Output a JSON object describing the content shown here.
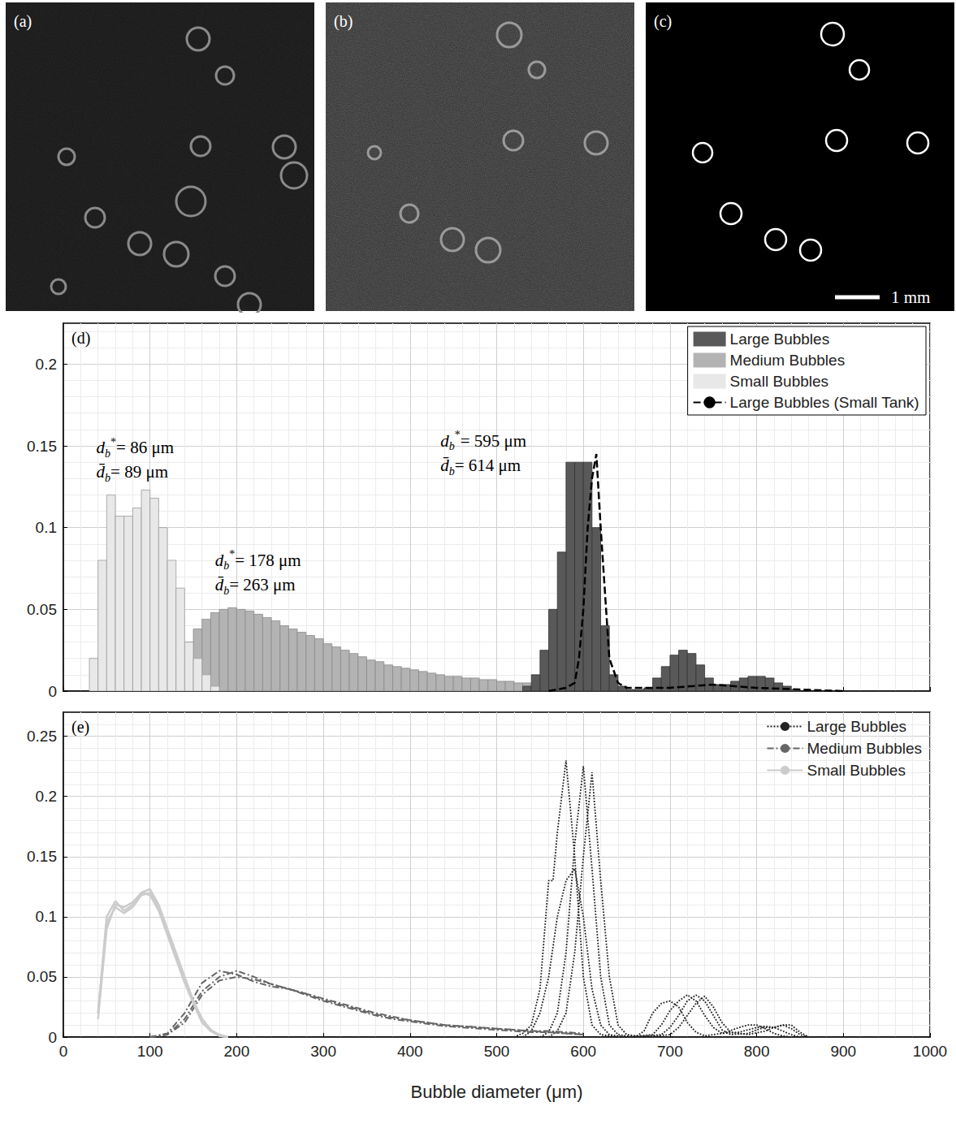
{
  "images": {
    "panels": [
      {
        "label": "(a)"
      },
      {
        "label": "(b)"
      },
      {
        "label": "(c)",
        "scale_bar": "1 mm"
      }
    ]
  },
  "chart_data": [
    {
      "type": "histogram",
      "title": "(d)",
      "xlim": [
        0,
        1000
      ],
      "xticks": [
        0,
        100,
        200,
        300,
        400,
        500,
        600,
        700,
        800,
        900,
        1000
      ],
      "ylim": [
        0,
        0.225
      ],
      "yticks": [
        0,
        0.05,
        0.1,
        0.15,
        0.2
      ],
      "grid": true,
      "legend": "upper right",
      "tick_labels": "y",
      "series": [
        {
          "name": "Large Bubbles",
          "color": "#595959",
          "type": "bar",
          "bins": [
            530,
            540,
            550,
            560,
            570,
            580,
            590,
            600,
            610,
            620,
            630,
            640,
            650,
            660,
            670,
            680,
            690,
            700,
            710,
            720,
            730,
            740,
            750,
            760,
            770,
            780,
            790,
            800,
            810,
            820,
            830,
            840,
            850
          ],
          "values": [
            0.003,
            0.01,
            0.025,
            0.05,
            0.085,
            0.14,
            0.14,
            0.14,
            0.1,
            0.04,
            0.01,
            0.003,
            0.001,
            0.001,
            0.002,
            0.008,
            0.015,
            0.022,
            0.025,
            0.023,
            0.016,
            0.008,
            0.004,
            0.004,
            0.006,
            0.008,
            0.009,
            0.009,
            0.008,
            0.005,
            0.003,
            0.001
          ]
        },
        {
          "name": "Medium Bubbles",
          "color": "#b3b3b3",
          "type": "bar",
          "bins": [
            100,
            110,
            120,
            130,
            140,
            150,
            160,
            170,
            180,
            190,
            200,
            210,
            220,
            230,
            240,
            250,
            260,
            270,
            280,
            290,
            300,
            310,
            320,
            330,
            340,
            350,
            360,
            370,
            380,
            390,
            400,
            410,
            420,
            430,
            440,
            450,
            460,
            470,
            480,
            490,
            500,
            510,
            520,
            530,
            540,
            550,
            560,
            570,
            580,
            590
          ],
          "values": [
            0.001,
            0.003,
            0.01,
            0.02,
            0.03,
            0.038,
            0.044,
            0.048,
            0.05,
            0.051,
            0.05,
            0.049,
            0.047,
            0.045,
            0.043,
            0.04,
            0.038,
            0.036,
            0.034,
            0.032,
            0.029,
            0.027,
            0.025,
            0.023,
            0.021,
            0.019,
            0.018,
            0.016,
            0.015,
            0.014,
            0.013,
            0.012,
            0.011,
            0.01,
            0.009,
            0.009,
            0.008,
            0.008,
            0.007,
            0.007,
            0.006,
            0.006,
            0.005,
            0.005,
            0.004,
            0.004,
            0.003,
            0.003,
            0.002
          ]
        },
        {
          "name": "Small Bubbles",
          "color": "#e8e8e8",
          "type": "bar",
          "bins": [
            30,
            40,
            50,
            60,
            70,
            80,
            90,
            100,
            110,
            120,
            130,
            140,
            150,
            160,
            170,
            180
          ],
          "values": [
            0.02,
            0.08,
            0.12,
            0.107,
            0.107,
            0.112,
            0.123,
            0.118,
            0.1,
            0.08,
            0.063,
            0.03,
            0.02,
            0.01,
            0.003
          ]
        },
        {
          "name": "Large Bubbles (Small Tank)",
          "color": "#000000",
          "type": "line",
          "line_style": "dashed",
          "x": [
            560,
            580,
            590,
            595,
            600,
            605,
            610,
            615,
            620,
            625,
            630,
            640,
            650,
            700,
            750,
            800,
            850,
            900
          ],
          "values": [
            0,
            0.002,
            0.005,
            0.02,
            0.05,
            0.1,
            0.13,
            0.145,
            0.1,
            0.06,
            0.02,
            0.005,
            0.002,
            0.002,
            0.004,
            0.002,
            0.001,
            0
          ]
        }
      ],
      "annotations": [
        {
          "symbol": "d",
          "sup": "*",
          "sub": "b",
          "text": "= 86 μm"
        },
        {
          "symbol": "d̄",
          "sub": "b",
          "text": "= 89 μm"
        },
        {
          "symbol": "d",
          "sup": "*",
          "sub": "b",
          "text": "= 178 μm"
        },
        {
          "symbol": "d̄",
          "sub": "b",
          "text": "= 263 μm"
        },
        {
          "symbol": "d",
          "sup": "*",
          "sub": "b",
          "text": "= 595 μm"
        },
        {
          "symbol": "d̄",
          "sub": "b",
          "text": "= 614 μm"
        }
      ]
    },
    {
      "type": "line",
      "title": "(e)",
      "xlabel": "Bubble diameter (μm)",
      "xlim": [
        0,
        1000
      ],
      "xticks": [
        0,
        100,
        200,
        300,
        400,
        500,
        600,
        700,
        800,
        900,
        1000
      ],
      "ylim": [
        0,
        0.27
      ],
      "yticks": [
        0,
        0.05,
        0.1,
        0.15,
        0.2,
        0.25
      ],
      "grid": true,
      "legend": "upper right",
      "series": [
        {
          "name": "Large Bubbles",
          "color": "#222222",
          "line_style": "dotted",
          "x": [
            520,
            530,
            540,
            550,
            560,
            565,
            570,
            580,
            590,
            600,
            610,
            620,
            640,
            660,
            670,
            680,
            690,
            700,
            710,
            720,
            730,
            740,
            760,
            780,
            790,
            800,
            810,
            820,
            830,
            840
          ],
          "values": [
            0,
            0.003,
            0.01,
            0.04,
            0.13,
            0.13,
            0.17,
            0.23,
            0.15,
            0.05,
            0.01,
            0.002,
            0,
            0,
            0.005,
            0.02,
            0.028,
            0.03,
            0.025,
            0.012,
            0.004,
            0.001,
            0.003,
            0.008,
            0.01,
            0.01,
            0.007,
            0.003,
            0.001,
            0
          ]
        },
        {
          "name": "Large Bubbles",
          "color": "#222222",
          "line_style": "dotted",
          "x": [
            530,
            540,
            550,
            560,
            570,
            580,
            590,
            600,
            610,
            620,
            630,
            650,
            680,
            690,
            700,
            710,
            720,
            730,
            740,
            750,
            760,
            780,
            800,
            810,
            820,
            830,
            840,
            850
          ],
          "values": [
            0,
            0.005,
            0.02,
            0.05,
            0.1,
            0.13,
            0.14,
            0.1,
            0.04,
            0.01,
            0.002,
            0,
            0.002,
            0.01,
            0.022,
            0.03,
            0.035,
            0.03,
            0.018,
            0.008,
            0.003,
            0.004,
            0.008,
            0.009,
            0.008,
            0.005,
            0.002,
            0
          ]
        },
        {
          "name": "Large Bubbles",
          "color": "#222222",
          "line_style": "dotted",
          "x": [
            550,
            560,
            570,
            580,
            590,
            600,
            610,
            620,
            630,
            640,
            660,
            690,
            700,
            710,
            720,
            730,
            740,
            750,
            760,
            770,
            790,
            800,
            810,
            820,
            830,
            840,
            850,
            860
          ],
          "values": [
            0,
            0.004,
            0.02,
            0.07,
            0.16,
            0.225,
            0.14,
            0.05,
            0.01,
            0.002,
            0,
            0.002,
            0.008,
            0.018,
            0.03,
            0.035,
            0.03,
            0.018,
            0.006,
            0.002,
            0.003,
            0.006,
            0.008,
            0.008,
            0.01,
            0.007,
            0.002,
            0
          ]
        },
        {
          "name": "Large Bubbles",
          "color": "#222222",
          "line_style": "dotted",
          "x": [
            560,
            570,
            580,
            590,
            600,
            610,
            620,
            630,
            640,
            650,
            670,
            700,
            710,
            720,
            730,
            740,
            750,
            760,
            770,
            790,
            810,
            820,
            830,
            840,
            850,
            860
          ],
          "values": [
            0,
            0.005,
            0.02,
            0.07,
            0.15,
            0.22,
            0.13,
            0.05,
            0.01,
            0.002,
            0,
            0.002,
            0.008,
            0.018,
            0.028,
            0.034,
            0.025,
            0.012,
            0.004,
            0.002,
            0.005,
            0.008,
            0.01,
            0.01,
            0.004,
            0
          ]
        },
        {
          "name": "Medium Bubbles",
          "color": "#666666",
          "line_style": "dashdot",
          "x": [
            100,
            120,
            140,
            160,
            180,
            200,
            220,
            240,
            260,
            280,
            300,
            320,
            340,
            360,
            380,
            400,
            420,
            440,
            460,
            480,
            500,
            520,
            540,
            560,
            580,
            600
          ],
          "values": [
            0,
            0.003,
            0.02,
            0.045,
            0.055,
            0.052,
            0.046,
            0.042,
            0.04,
            0.035,
            0.03,
            0.026,
            0.022,
            0.018,
            0.015,
            0.013,
            0.011,
            0.009,
            0.008,
            0.007,
            0.006,
            0.005,
            0.004,
            0.004,
            0.003,
            0.002
          ]
        },
        {
          "name": "Medium Bubbles",
          "color": "#666666",
          "line_style": "dashdot",
          "x": [
            100,
            120,
            140,
            160,
            180,
            200,
            220,
            240,
            260,
            280,
            300,
            320,
            340,
            360,
            380,
            400,
            420,
            440,
            460,
            480,
            500,
            520,
            540,
            560,
            580,
            600
          ],
          "values": [
            0,
            0.002,
            0.015,
            0.038,
            0.05,
            0.055,
            0.05,
            0.044,
            0.04,
            0.036,
            0.031,
            0.027,
            0.023,
            0.019,
            0.016,
            0.014,
            0.012,
            0.01,
            0.009,
            0.008,
            0.007,
            0.006,
            0.005,
            0.005,
            0.004,
            0.003
          ]
        },
        {
          "name": "Medium Bubbles",
          "color": "#666666",
          "line_style": "dashdot",
          "x": [
            100,
            120,
            140,
            160,
            180,
            200,
            220,
            240,
            260,
            280,
            300,
            320,
            340,
            360,
            380,
            400,
            420,
            440,
            460,
            480,
            500,
            520,
            540,
            560,
            580,
            600
          ],
          "values": [
            0,
            0.002,
            0.012,
            0.035,
            0.047,
            0.05,
            0.048,
            0.044,
            0.04,
            0.036,
            0.032,
            0.028,
            0.024,
            0.02,
            0.017,
            0.014,
            0.012,
            0.01,
            0.009,
            0.008,
            0.007,
            0.006,
            0.005,
            0.004,
            0.003,
            0.002
          ]
        },
        {
          "name": "Small Bubbles",
          "color": "#cccccc",
          "line_style": "solid",
          "x": [
            40,
            50,
            60,
            70,
            80,
            90,
            100,
            110,
            120,
            130,
            140,
            150,
            160,
            170,
            180,
            190
          ],
          "values": [
            0.02,
            0.1,
            0.113,
            0.105,
            0.11,
            0.12,
            0.123,
            0.11,
            0.09,
            0.07,
            0.05,
            0.03,
            0.015,
            0.006,
            0.002,
            0
          ]
        },
        {
          "name": "Small Bubbles",
          "color": "#cccccc",
          "line_style": "solid",
          "x": [
            40,
            50,
            60,
            70,
            80,
            90,
            100,
            110,
            120,
            130,
            140,
            150,
            160,
            170,
            180,
            190
          ],
          "values": [
            0.02,
            0.095,
            0.108,
            0.103,
            0.108,
            0.118,
            0.12,
            0.108,
            0.088,
            0.068,
            0.048,
            0.03,
            0.015,
            0.006,
            0.001,
            0
          ]
        },
        {
          "name": "Small Bubbles",
          "color": "#cccccc",
          "line_style": "solid",
          "x": [
            40,
            50,
            60,
            70,
            80,
            90,
            100,
            110,
            120,
            130,
            140,
            150,
            160,
            170,
            180,
            190
          ],
          "values": [
            0.015,
            0.09,
            0.11,
            0.108,
            0.112,
            0.12,
            0.118,
            0.105,
            0.085,
            0.065,
            0.045,
            0.028,
            0.012,
            0.005,
            0.001,
            0
          ]
        }
      ]
    }
  ]
}
